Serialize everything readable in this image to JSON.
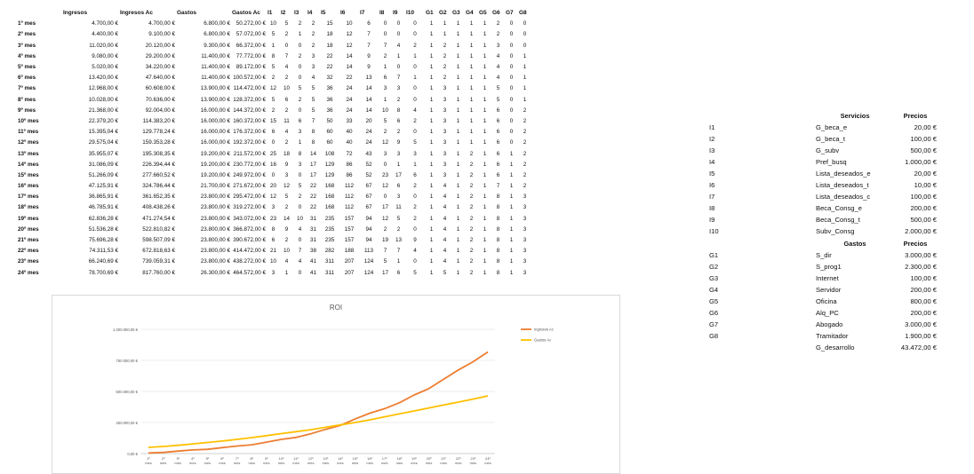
{
  "main_table": {
    "headers": [
      "Ingresos",
      "Ingresos Ac",
      "Gastos",
      "Gastos Ac",
      "I1",
      "I2",
      "I3",
      "I4",
      "I5",
      "I6",
      "I7",
      "I8",
      "I9",
      "I10",
      "G1",
      "G2",
      "G3",
      "G4",
      "G5",
      "G6",
      "G7",
      "G8"
    ],
    "rows": [
      [
        "1º mes",
        "4.700,00 €",
        "4.700,00 €",
        "6.800,00 €",
        "50.272,00 €",
        "10",
        "5",
        "2",
        "2",
        "15",
        "10",
        "6",
        "0",
        "0",
        "0",
        "1",
        "1",
        "1",
        "1",
        "1",
        "2",
        "0",
        "0"
      ],
      [
        "2º mes",
        "4.400,00 €",
        "9.100,00 €",
        "6.800,00 €",
        "57.072,00 €",
        "5",
        "2",
        "1",
        "2",
        "18",
        "12",
        "7",
        "0",
        "0",
        "0",
        "1",
        "1",
        "1",
        "1",
        "1",
        "2",
        "0",
        "0"
      ],
      [
        "3º mes",
        "11.020,00 €",
        "20.120,00 €",
        "9.300,00 €",
        "66.372,00 €",
        "1",
        "0",
        "0",
        "2",
        "18",
        "12",
        "7",
        "7",
        "4",
        "2",
        "1",
        "2",
        "1",
        "1",
        "1",
        "3",
        "0",
        "0"
      ],
      [
        "4º mes",
        "9.080,00 €",
        "29.200,00 €",
        "11.400,00 €",
        "77.772,00 €",
        "8",
        "7",
        "2",
        "3",
        "22",
        "14",
        "9",
        "2",
        "1",
        "1",
        "1",
        "2",
        "1",
        "1",
        "1",
        "4",
        "0",
        "1"
      ],
      [
        "5º mes",
        "5.020,00 €",
        "34.220,00 €",
        "11.400,00 €",
        "89.172,00 €",
        "5",
        "4",
        "0",
        "3",
        "22",
        "14",
        "9",
        "1",
        "0",
        "0",
        "1",
        "2",
        "1",
        "1",
        "1",
        "4",
        "0",
        "1"
      ],
      [
        "6º mes",
        "13.420,00 €",
        "47.640,00 €",
        "11.400,00 €",
        "100.572,00 €",
        "2",
        "2",
        "0",
        "4",
        "32",
        "22",
        "13",
        "6",
        "7",
        "1",
        "1",
        "2",
        "1",
        "1",
        "1",
        "4",
        "0",
        "1"
      ],
      [
        "7º mes",
        "12.968,00 €",
        "60.608,00 €",
        "13.900,00 €",
        "114.472,00 €",
        "12",
        "10",
        "5",
        "5",
        "36",
        "24",
        "14",
        "3",
        "3",
        "0",
        "1",
        "3",
        "1",
        "1",
        "1",
        "5",
        "0",
        "1"
      ],
      [
        "8º mes",
        "10.028,00 €",
        "70.636,00 €",
        "13.900,00 €",
        "128.372,00 €",
        "5",
        "6",
        "2",
        "5",
        "36",
        "24",
        "14",
        "1",
        "2",
        "0",
        "1",
        "3",
        "1",
        "1",
        "1",
        "5",
        "0",
        "1"
      ],
      [
        "9º mes",
        "21.368,00 €",
        "92.004,00 €",
        "16.000,00 €",
        "144.372,00 €",
        "2",
        "2",
        "0",
        "5",
        "36",
        "24",
        "14",
        "10",
        "8",
        "4",
        "1",
        "3",
        "1",
        "1",
        "1",
        "6",
        "0",
        "2"
      ],
      [
        "10º mes",
        "22.379,20 €",
        "114.383,20 €",
        "16.000,00 €",
        "160.372,00 €",
        "15",
        "11",
        "6",
        "7",
        "50",
        "33",
        "20",
        "5",
        "6",
        "2",
        "1",
        "3",
        "1",
        "1",
        "1",
        "6",
        "0",
        "2"
      ],
      [
        "11º mes",
        "15.395,04 €",
        "129.778,24 €",
        "16.000,00 €",
        "176.372,00 €",
        "6",
        "4",
        "3",
        "8",
        "60",
        "40",
        "24",
        "2",
        "2",
        "0",
        "1",
        "3",
        "1",
        "1",
        "1",
        "6",
        "0",
        "2"
      ],
      [
        "12º mes",
        "29.575,04 €",
        "159.353,28 €",
        "16.000,00 €",
        "192.372,00 €",
        "0",
        "2",
        "1",
        "8",
        "60",
        "40",
        "24",
        "12",
        "9",
        "5",
        "1",
        "3",
        "1",
        "1",
        "1",
        "6",
        "0",
        "2"
      ],
      [
        "13º mes",
        "35.955,07 €",
        "195.308,35 €",
        "19.200,00 €",
        "211.572,00 €",
        "25",
        "18",
        "8",
        "14",
        "108",
        "72",
        "43",
        "3",
        "3",
        "3",
        "1",
        "3",
        "1",
        "2",
        "1",
        "6",
        "1",
        "2"
      ],
      [
        "14º mes",
        "31.086,09 €",
        "226.394,44 €",
        "19.200,00 €",
        "230.772,00 €",
        "16",
        "9",
        "3",
        "17",
        "129",
        "86",
        "52",
        "0",
        "1",
        "1",
        "1",
        "3",
        "1",
        "2",
        "1",
        "6",
        "1",
        "2"
      ],
      [
        "15º mes",
        "51.266,09 €",
        "277.660,52 €",
        "19.200,00 €",
        "249.972,00 €",
        "0",
        "3",
        "0",
        "17",
        "129",
        "86",
        "52",
        "23",
        "17",
        "6",
        "1",
        "3",
        "1",
        "2",
        "1",
        "6",
        "1",
        "2"
      ],
      [
        "16º mes",
        "47.125,91 €",
        "324.786,44 €",
        "21.700,00 €",
        "271.672,00 €",
        "20",
        "12",
        "5",
        "22",
        "168",
        "112",
        "67",
        "12",
        "6",
        "2",
        "1",
        "4",
        "1",
        "2",
        "1",
        "7",
        "1",
        "2"
      ],
      [
        "17º mes",
        "36.865,91 €",
        "361.652,35 €",
        "23.800,00 €",
        "295.472,00 €",
        "12",
        "5",
        "2",
        "22",
        "168",
        "112",
        "67",
        "0",
        "3",
        "0",
        "1",
        "4",
        "1",
        "2",
        "1",
        "8",
        "1",
        "3"
      ],
      [
        "18º mes",
        "46.785,91 €",
        "408.438,26 €",
        "23.800,00 €",
        "319.272,00 €",
        "3",
        "2",
        "0",
        "22",
        "168",
        "112",
        "67",
        "17",
        "11",
        "2",
        "1",
        "4",
        "1",
        "2",
        "1",
        "8",
        "1",
        "3"
      ],
      [
        "19º mes",
        "62.836,28 €",
        "471.274,54 €",
        "23.800,00 €",
        "343.072,00 €",
        "23",
        "14",
        "10",
        "31",
        "235",
        "157",
        "94",
        "12",
        "5",
        "2",
        "1",
        "4",
        "1",
        "2",
        "1",
        "8",
        "1",
        "3"
      ],
      [
        "20º mes",
        "51.536,28 €",
        "522.810,82 €",
        "23.800,00 €",
        "366.872,00 €",
        "8",
        "9",
        "4",
        "31",
        "235",
        "157",
        "94",
        "2",
        "2",
        "0",
        "1",
        "4",
        "1",
        "2",
        "1",
        "8",
        "1",
        "3"
      ],
      [
        "21º mes",
        "75.696,28 €",
        "598.507,09 €",
        "23.800,00 €",
        "390.672,00 €",
        "6",
        "2",
        "0",
        "31",
        "235",
        "157",
        "94",
        "19",
        "13",
        "9",
        "1",
        "4",
        "1",
        "2",
        "1",
        "8",
        "1",
        "3"
      ],
      [
        "22º mes",
        "74.311,53 €",
        "672.818,63 €",
        "23.800,00 €",
        "414.472,00 €",
        "21",
        "10",
        "7",
        "38",
        "282",
        "188",
        "113",
        "7",
        "7",
        "4",
        "1",
        "4",
        "1",
        "2",
        "1",
        "8",
        "1",
        "3"
      ],
      [
        "23º mes",
        "66.240,69 €",
        "739.059,31 €",
        "23.800,00 €",
        "438.272,00 €",
        "10",
        "4",
        "4",
        "41",
        "311",
        "207",
        "124",
        "5",
        "1",
        "0",
        "1",
        "4",
        "1",
        "2",
        "1",
        "8",
        "1",
        "3"
      ],
      [
        "24º mes",
        "78.700,69 €",
        "817.760,00 €",
        "26.300,00 €",
        "464.572,00 €",
        "3",
        "1",
        "0",
        "41",
        "311",
        "207",
        "124",
        "17",
        "6",
        "5",
        "1",
        "5",
        "1",
        "2",
        "1",
        "8",
        "1",
        "3"
      ]
    ]
  },
  "servicios": {
    "header_name": "Servicios",
    "header_price": "Precios",
    "rows": [
      [
        "I1",
        "G_beca_e",
        "20,00 €"
      ],
      [
        "I2",
        "G_beca_t",
        "100,00 €"
      ],
      [
        "I3",
        "G_subv",
        "500,00 €"
      ],
      [
        "I4",
        "Pref_busq",
        "1.000,00 €"
      ],
      [
        "I5",
        "Lista_deseados_e",
        "20,00 €"
      ],
      [
        "I6",
        "Lista_deseados_t",
        "10,00 €"
      ],
      [
        "I7",
        "Lista_deseados_c",
        "100,00 €"
      ],
      [
        "I8",
        "Beca_Consg_e",
        "200,00 €"
      ],
      [
        "I9",
        "Beca_Consg_t",
        "500,00 €"
      ],
      [
        "I10",
        "Subv_Consg",
        "2.000,00 €"
      ]
    ]
  },
  "gastos": {
    "header_name": "Gastos",
    "header_price": "Precios",
    "rows": [
      [
        "G1",
        "S_dir",
        "3.000,00 €"
      ],
      [
        "G2",
        "S_prog1",
        "2.300,00 €"
      ],
      [
        "G3",
        "Internet",
        "100,00 €"
      ],
      [
        "G4",
        "Servidor",
        "200,00 €"
      ],
      [
        "G5",
        "Oficina",
        "800,00 €"
      ],
      [
        "G6",
        "Alq_PC",
        "200,00 €"
      ],
      [
        "G7",
        "Abogado",
        "3.000,00 €"
      ],
      [
        "G8",
        "Tramitador",
        "1.900,00 €"
      ],
      [
        "",
        "G_desarrollo",
        "43.472,00 €"
      ]
    ]
  },
  "chart_data": {
    "type": "line",
    "title": "ROI",
    "categories": [
      "1º mes",
      "2º mes",
      "3º mes",
      "4º mes",
      "5º mes",
      "6º mes",
      "7º mes",
      "8º mes",
      "9º mes",
      "10º mes",
      "11º mes",
      "12º mes",
      "13º mes",
      "14º mes",
      "15º mes",
      "16º mes",
      "17º mes",
      "18º mes",
      "19º mes",
      "20º mes",
      "21º mes",
      "22º mes",
      "23º mes",
      "24º mes"
    ],
    "series": [
      {
        "name": "Ingresos Ac",
        "color": "#ed7d31",
        "values": [
          4700,
          9100,
          20120,
          29200,
          34220,
          47640,
          60608,
          70636,
          92004,
          114383.2,
          129778.24,
          159353.28,
          195308.35,
          226394.44,
          277660.52,
          324786.44,
          361652.35,
          408438.26,
          471274.54,
          522810.82,
          598507.09,
          672818.63,
          739059.31,
          817760
        ]
      },
      {
        "name": "Gastos Ac",
        "color": "#ffc000",
        "values": [
          50272,
          57072,
          66372,
          77772,
          89172,
          100572,
          114472,
          128372,
          144372,
          160372,
          176372,
          192372,
          211572,
          230772,
          249972,
          271672,
          295472,
          319272,
          343072,
          366872,
          390672,
          414472,
          438272,
          464572
        ]
      }
    ],
    "ylim": [
      0,
      1000000
    ],
    "yticks": [
      0,
      250000,
      500000,
      750000,
      1000000
    ],
    "ytick_labels": [
      "0,00 €",
      "250.000,00 €",
      "500.000,00 €",
      "750.000,00 €",
      "1.000.000,00 €"
    ],
    "grid": true,
    "legend": "right"
  }
}
